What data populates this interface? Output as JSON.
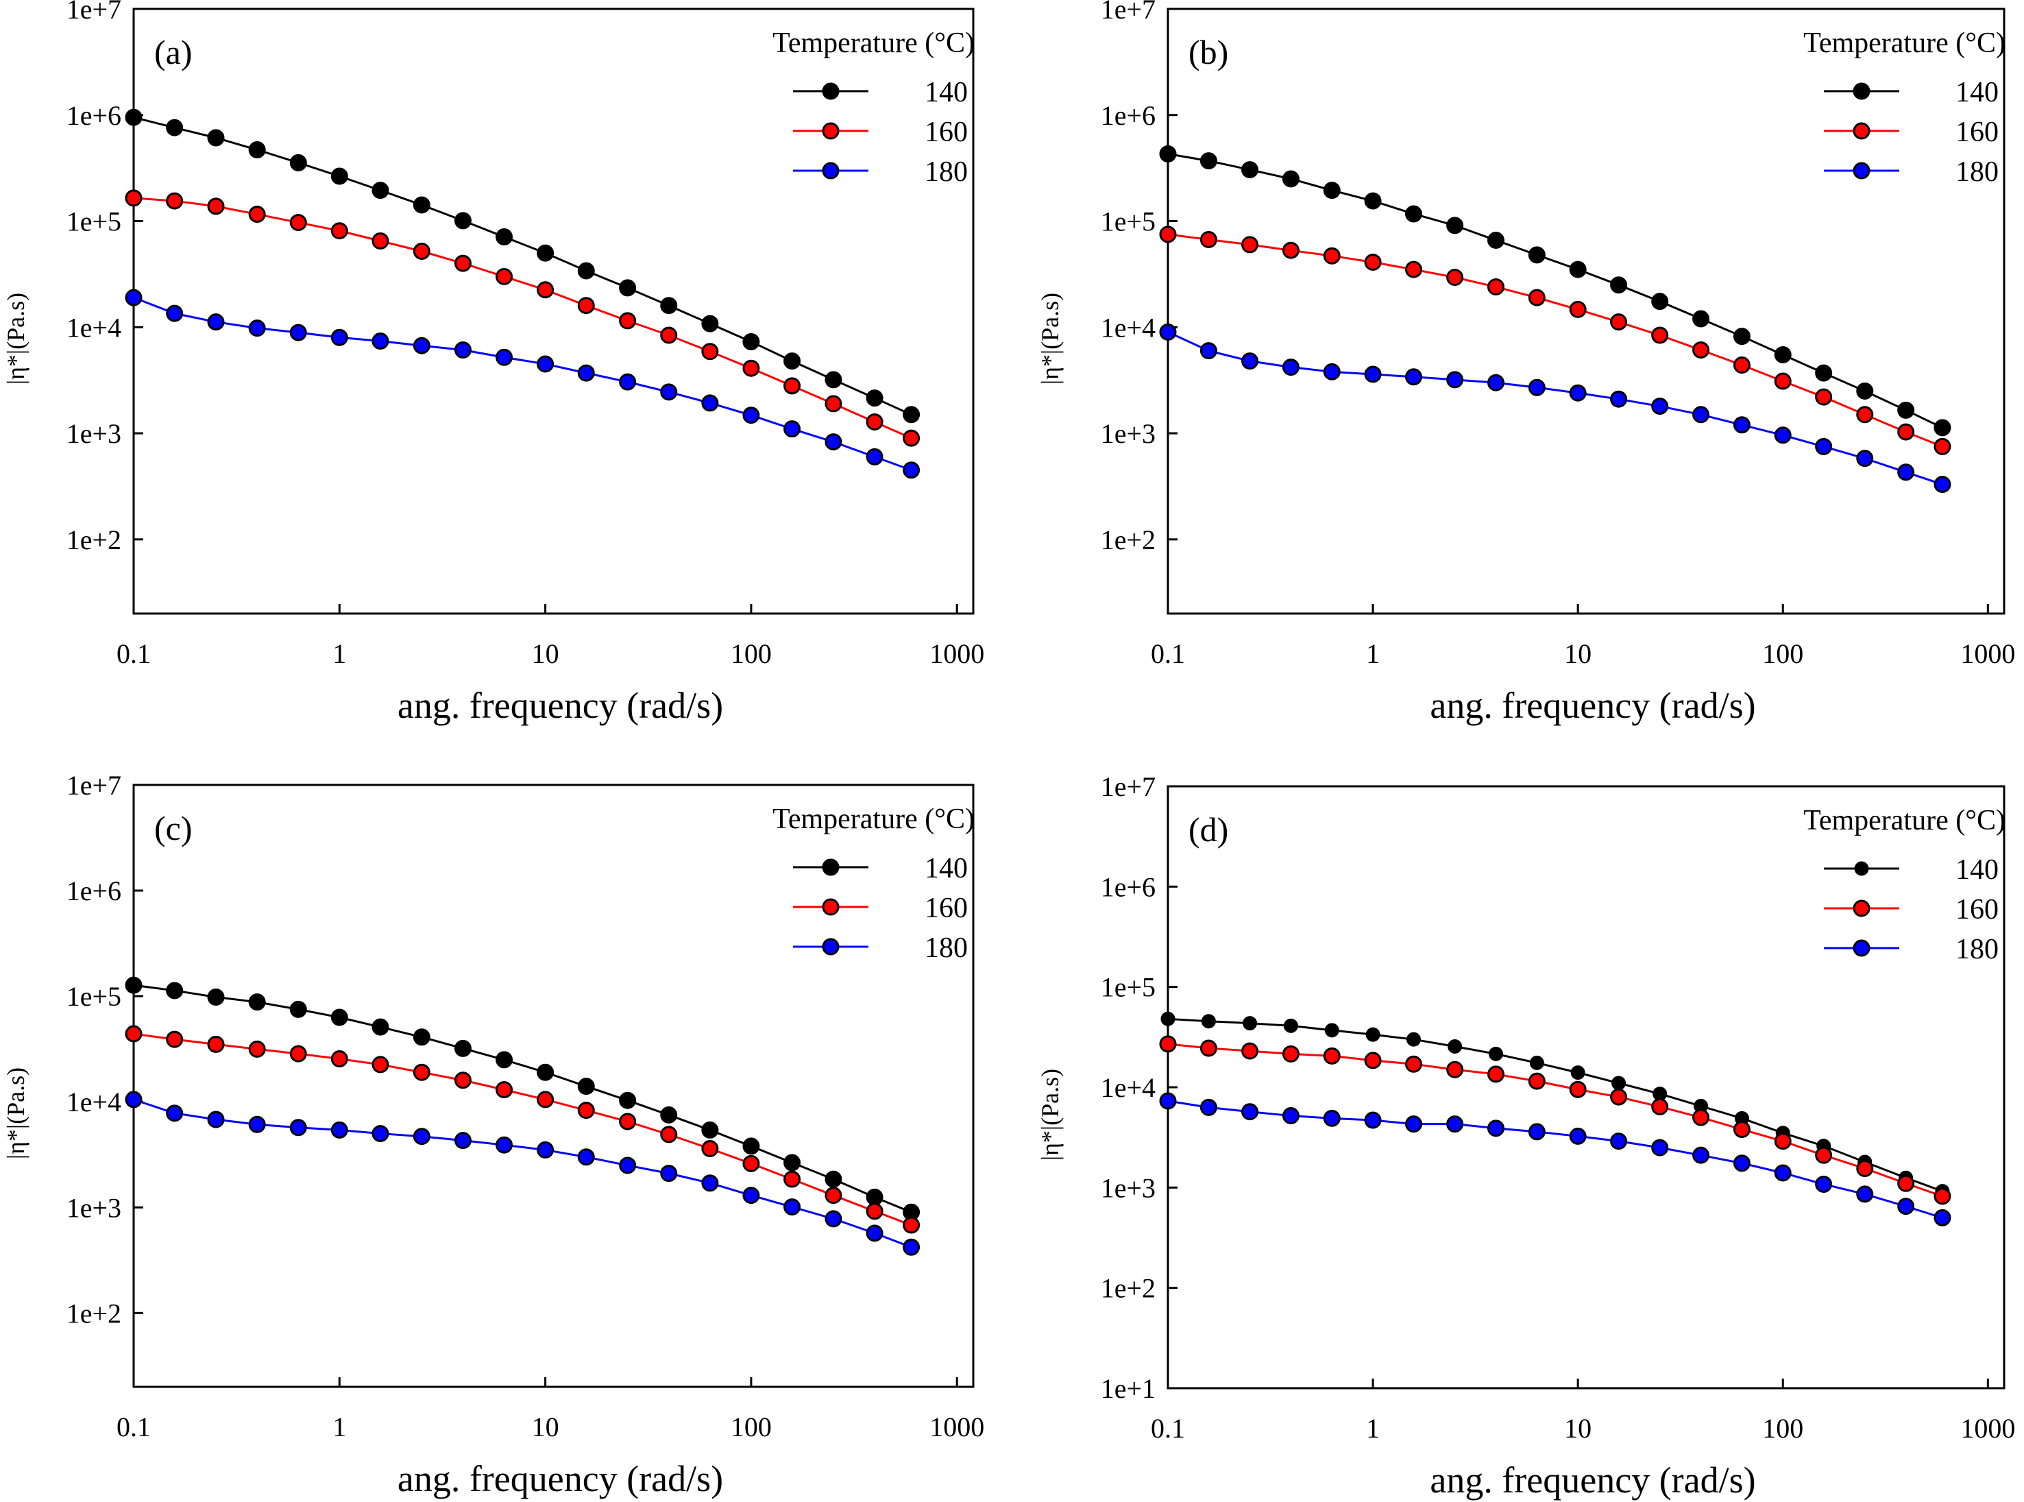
{
  "chart_data": [
    {
      "type": "line",
      "panel_label": "(a)",
      "xlabel": "ang. frequency (rad/s)",
      "ylabel": "|η*|(Pa.s)",
      "xscale": "log",
      "yscale": "log",
      "xlim": [
        0.1,
        1200
      ],
      "ylim": [
        20,
        10000000
      ],
      "xticks": [
        0.1,
        1,
        10,
        100,
        1000
      ],
      "xtick_labels": [
        "0.1",
        "1",
        "10",
        "100",
        "1000"
      ],
      "yticks": [
        100,
        1000,
        10000,
        100000,
        1000000,
        10000000
      ],
      "ytick_labels": [
        "1e+2",
        "1e+3",
        "1e+4",
        "1e+5",
        "1e+6",
        "1e+7"
      ],
      "legend_title": "Temperature (°C)",
      "legend_position": "top-right",
      "grid": false,
      "x": [
        0.1,
        0.158,
        0.251,
        0.398,
        0.631,
        1,
        1.58,
        2.51,
        3.98,
        6.31,
        10,
        15.8,
        25.1,
        39.8,
        63.1,
        100,
        158,
        251,
        398,
        600
      ],
      "series": [
        {
          "name": "140",
          "color": "#000000",
          "marker": "circle",
          "values": [
            950000,
            760000,
            610000,
            470000,
            355000,
            265000,
            195000,
            142000,
            101000,
            71000,
            50000,
            34000,
            23500,
            16000,
            10800,
            7300,
            4800,
            3200,
            2150,
            1500
          ]
        },
        {
          "name": "160",
          "color": "#ff0000",
          "marker": "circle",
          "values": [
            165000,
            155000,
            138000,
            116000,
            97000,
            81000,
            65000,
            52000,
            40000,
            30000,
            22500,
            16000,
            11500,
            8400,
            5900,
            4100,
            2800,
            1900,
            1280,
            900
          ]
        },
        {
          "name": "180",
          "color": "#0000ff",
          "marker": "circle",
          "values": [
            19000,
            13500,
            11200,
            9800,
            8900,
            8000,
            7400,
            6700,
            6100,
            5200,
            4500,
            3700,
            3050,
            2450,
            1930,
            1480,
            1100,
            830,
            600,
            450
          ]
        }
      ]
    },
    {
      "type": "line",
      "panel_label": "(b)",
      "xlabel": "ang. frequency (rad/s)",
      "ylabel": "|η*|(Pa.s)",
      "xscale": "log",
      "yscale": "log",
      "xlim": [
        0.1,
        1200
      ],
      "ylim": [
        20,
        10000000
      ],
      "xticks": [
        0.1,
        1,
        10,
        100,
        1000
      ],
      "xtick_labels": [
        "0.1",
        "1",
        "10",
        "100",
        "1000"
      ],
      "yticks": [
        100,
        1000,
        10000,
        100000,
        1000000,
        10000000
      ],
      "ytick_labels": [
        "1e+2",
        "1e+3",
        "1e+4",
        "1e+5",
        "1e+6",
        "1e+7"
      ],
      "legend_title": "Temperature (°C)",
      "legend_position": "top-right",
      "grid": false,
      "x": [
        0.1,
        0.158,
        0.251,
        0.398,
        0.631,
        1,
        1.58,
        2.51,
        3.98,
        6.31,
        10,
        15.8,
        25.1,
        39.8,
        63.1,
        100,
        158,
        251,
        398,
        600
      ],
      "series": [
        {
          "name": "140",
          "color": "#000000",
          "marker": "circle",
          "values": [
            430000,
            370000,
            305000,
            250000,
            195000,
            155000,
            117000,
            91000,
            66000,
            48000,
            35000,
            25000,
            17500,
            12000,
            8200,
            5500,
            3700,
            2500,
            1650,
            1130
          ]
        },
        {
          "name": "160",
          "color": "#ff0000",
          "marker": "circle",
          "values": [
            75000,
            67000,
            60000,
            53000,
            47000,
            41000,
            35000,
            29500,
            24000,
            19000,
            14700,
            11200,
            8400,
            6100,
            4400,
            3100,
            2200,
            1500,
            1030,
            750
          ]
        },
        {
          "name": "180",
          "color": "#0000ff",
          "marker": "circle",
          "values": [
            9000,
            6000,
            4800,
            4200,
            3800,
            3600,
            3400,
            3200,
            3000,
            2700,
            2400,
            2100,
            1800,
            1500,
            1200,
            960,
            750,
            580,
            430,
            330
          ]
        }
      ]
    },
    {
      "type": "line",
      "panel_label": "(c)",
      "xlabel": "ang. frequency (rad/s)",
      "ylabel": "|η*|(Pa.s)",
      "xscale": "log",
      "yscale": "log",
      "xlim": [
        0.1,
        1200
      ],
      "ylim": [
        20,
        10000000
      ],
      "xticks": [
        0.1,
        1,
        10,
        100,
        1000
      ],
      "xtick_labels": [
        "0.1",
        "1",
        "10",
        "100",
        "1000"
      ],
      "yticks": [
        100,
        1000,
        10000,
        100000,
        1000000,
        10000000
      ],
      "ytick_labels": [
        "1e+2",
        "1e+3",
        "1e+4",
        "1e+5",
        "1e+6",
        "1e+7"
      ],
      "legend_title": "Temperature (°C)",
      "legend_position": "top-right",
      "grid": false,
      "x": [
        0.1,
        0.158,
        0.251,
        0.398,
        0.631,
        1,
        1.58,
        2.51,
        3.98,
        6.31,
        10,
        15.8,
        25.1,
        39.8,
        63.1,
        100,
        158,
        251,
        398,
        600
      ],
      "series": [
        {
          "name": "140",
          "color": "#000000",
          "marker": "circle",
          "values": [
            127000,
            113000,
            98000,
            88000,
            75000,
            63000,
            51000,
            41000,
            32000,
            25000,
            19000,
            14000,
            10300,
            7500,
            5400,
            3800,
            2650,
            1850,
            1250,
            900
          ]
        },
        {
          "name": "160",
          "color": "#ff0000",
          "marker": "circle",
          "values": [
            44000,
            39000,
            35000,
            31500,
            28500,
            25500,
            22500,
            19000,
            16000,
            13000,
            10500,
            8300,
            6500,
            4900,
            3600,
            2600,
            1850,
            1300,
            920,
            680
          ]
        },
        {
          "name": "180",
          "color": "#0000ff",
          "marker": "circle",
          "values": [
            10500,
            7800,
            6800,
            6100,
            5700,
            5400,
            5000,
            4700,
            4300,
            3900,
            3500,
            3000,
            2500,
            2100,
            1700,
            1300,
            1010,
            780,
            570,
            420
          ]
        }
      ]
    },
    {
      "type": "line",
      "panel_label": "(d)",
      "xlabel": "ang. frequency (rad/s)",
      "ylabel": "|η*|(Pa.s)",
      "xscale": "log",
      "yscale": "log",
      "xlim": [
        0.1,
        1200
      ],
      "ylim": [
        10,
        10000000
      ],
      "xticks": [
        0.1,
        1,
        10,
        100,
        1000
      ],
      "xtick_labels": [
        "0.1",
        "1",
        "10",
        "100",
        "1000"
      ],
      "yticks": [
        10,
        100,
        1000,
        10000,
        100000,
        1000000,
        10000000
      ],
      "ytick_labels": [
        "1e+1",
        "1e+2",
        "1e+3",
        "1e+4",
        "1e+5",
        "1e+6",
        "1e+7"
      ],
      "legend_title": "Temperature (°C)",
      "legend_position": "top-right",
      "grid": false,
      "x": [
        0.1,
        0.158,
        0.251,
        0.398,
        0.631,
        1,
        1.58,
        2.51,
        3.98,
        6.31,
        10,
        15.8,
        25.1,
        39.8,
        63.1,
        100,
        158,
        251,
        398,
        600
      ],
      "series": [
        {
          "name": "140",
          "color": "#000000",
          "marker": "circle-small",
          "values": [
            48000,
            45500,
            43500,
            41000,
            37000,
            33500,
            30000,
            25500,
            21500,
            17500,
            14000,
            11000,
            8600,
            6500,
            4900,
            3500,
            2600,
            1800,
            1250,
            920
          ]
        },
        {
          "name": "160",
          "color": "#ff0000",
          "marker": "circle",
          "values": [
            27000,
            24500,
            23000,
            21500,
            20500,
            18500,
            17000,
            15000,
            13500,
            11500,
            9500,
            8000,
            6400,
            5000,
            3800,
            2900,
            2100,
            1550,
            1100,
            820
          ]
        },
        {
          "name": "180",
          "color": "#0000ff",
          "marker": "circle",
          "values": [
            7300,
            6300,
            5700,
            5200,
            4900,
            4700,
            4300,
            4300,
            3900,
            3600,
            3250,
            2900,
            2500,
            2100,
            1750,
            1400,
            1080,
            860,
            650,
            500
          ]
        }
      ]
    }
  ]
}
